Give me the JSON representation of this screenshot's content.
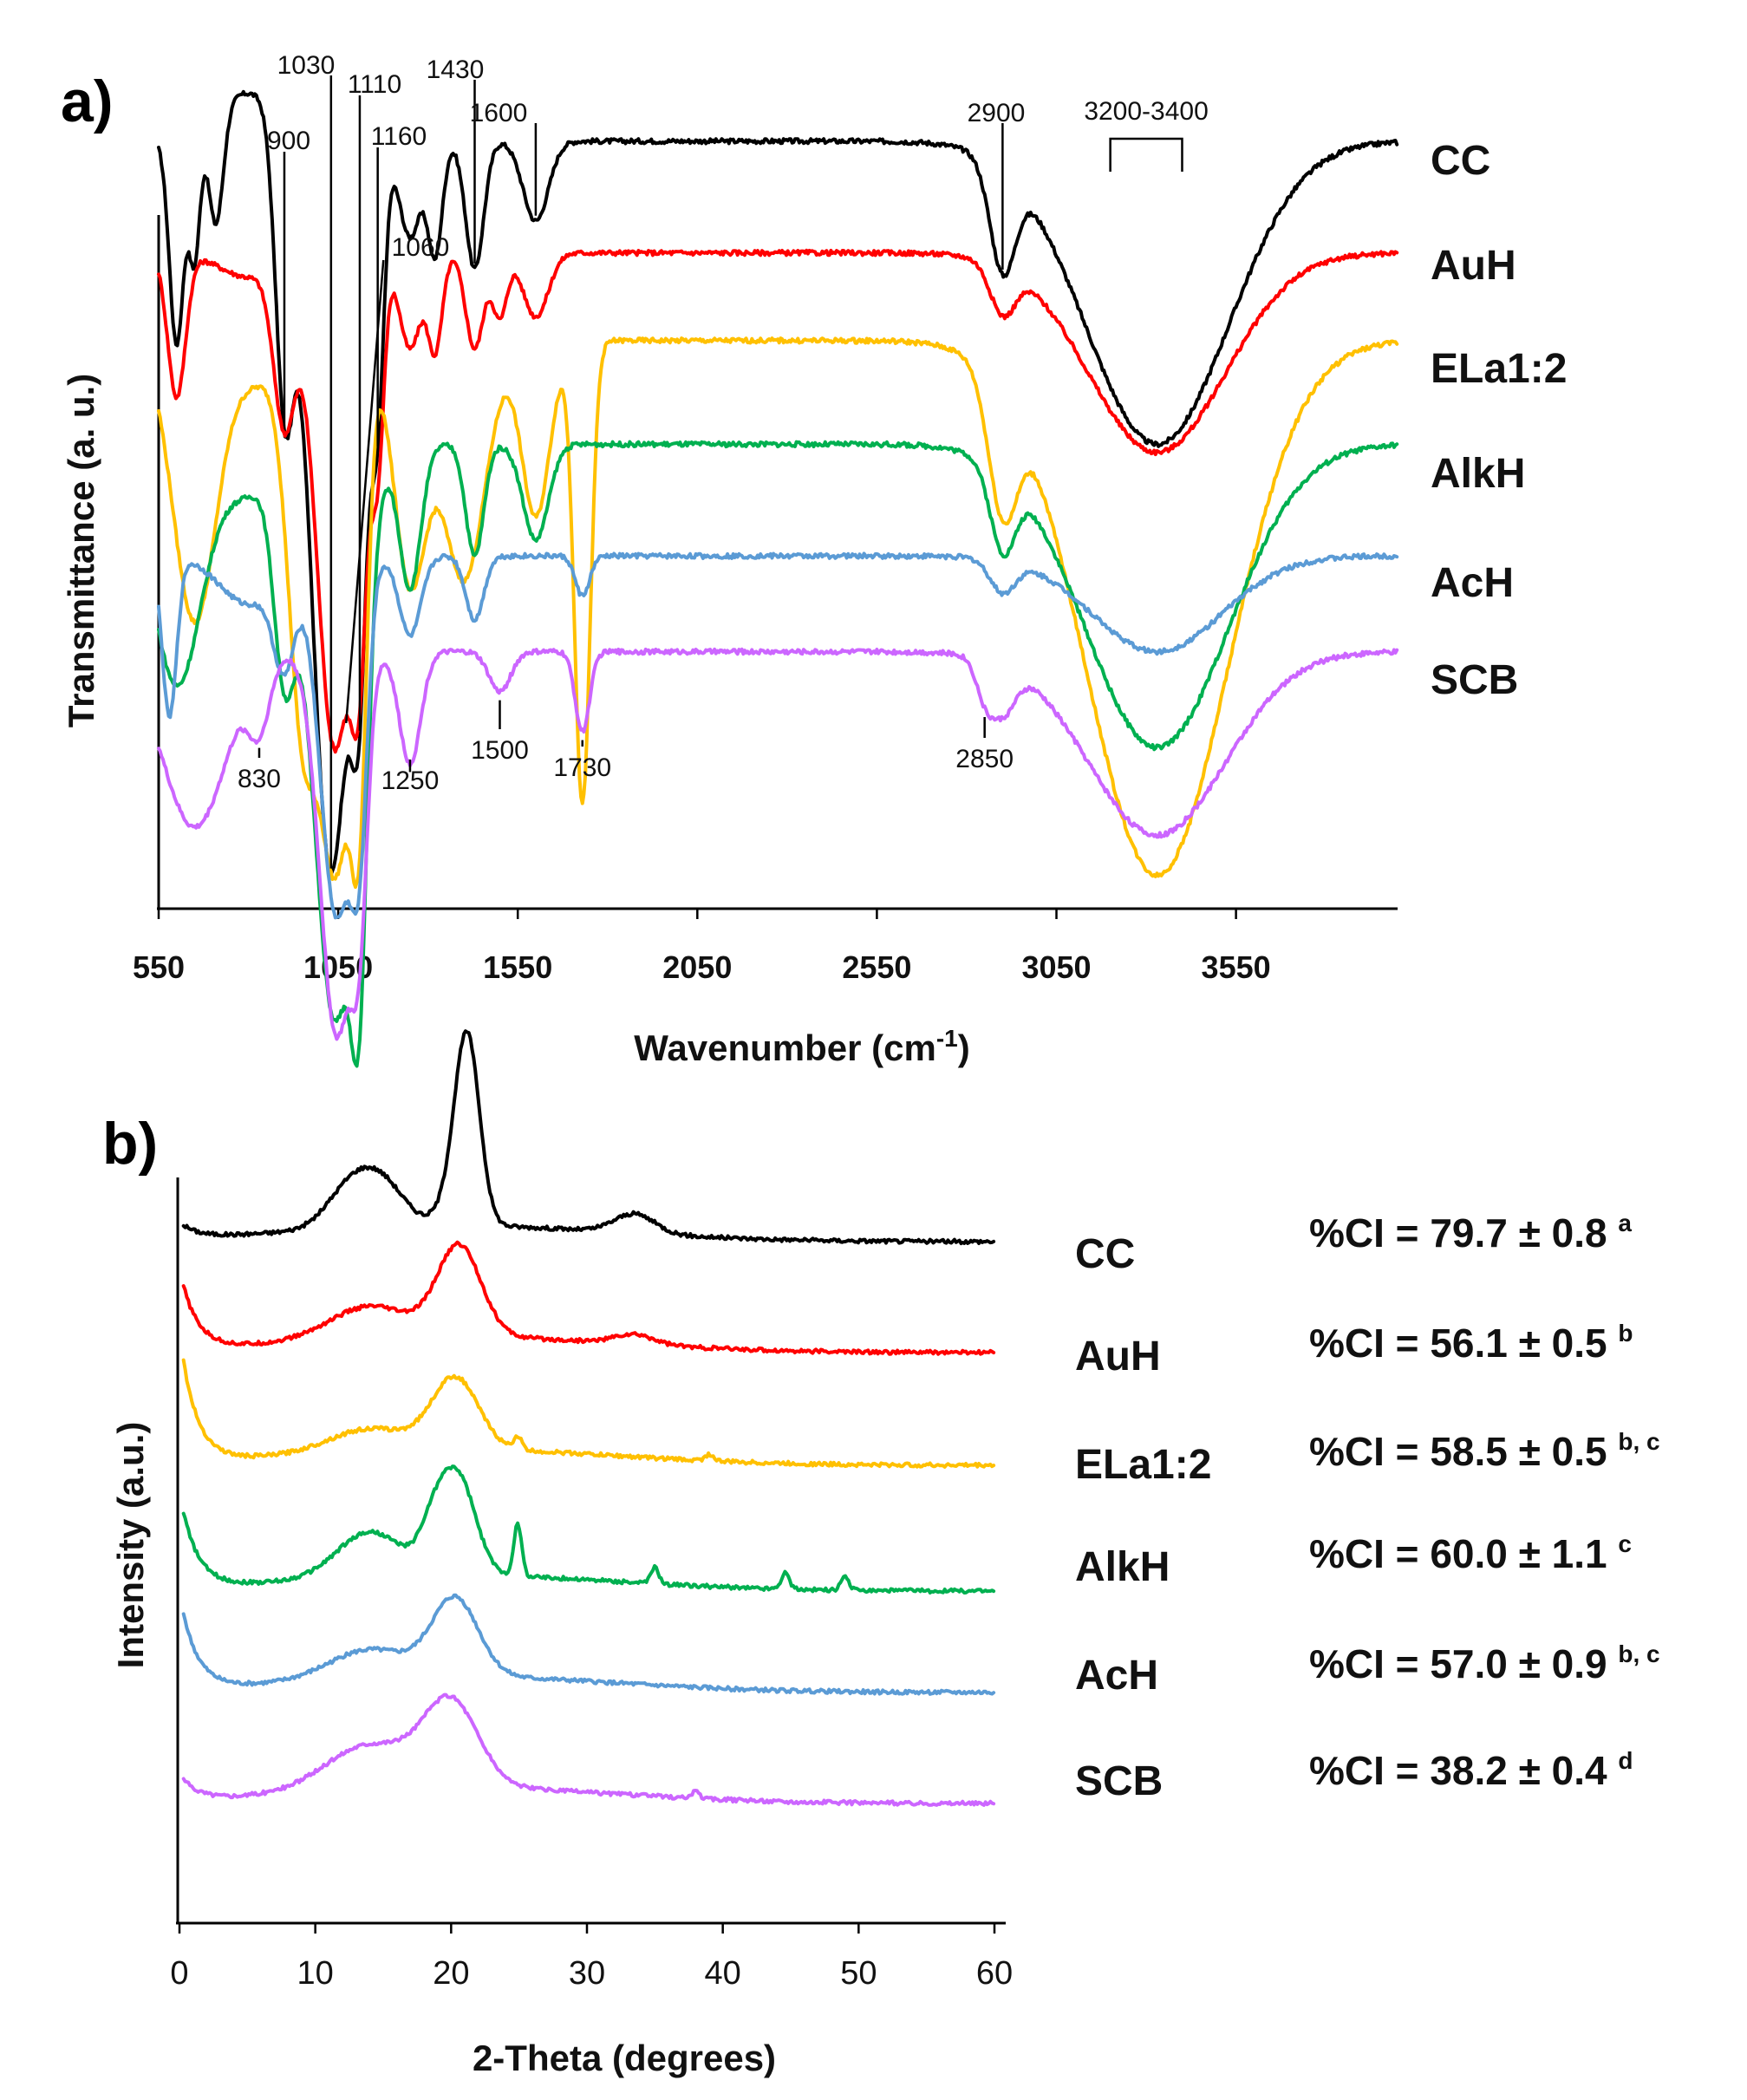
{
  "chart_data": [
    {
      "panel": "a)",
      "type": "line",
      "xlabel": "Wavenumber (cm",
      "xlabel_sup": "-1",
      "xlabel_close": ")",
      "ylabel": "Transmittance (a. u.)",
      "xlim": [
        550,
        4000
      ],
      "xticks": [
        "550",
        "1050",
        "1550",
        "2050",
        "2550",
        "3050",
        "3550"
      ],
      "xtick_values": [
        550,
        1050,
        1550,
        2050,
        2550,
        3050,
        3550
      ],
      "grid": false,
      "series": [
        {
          "name": "CC",
          "color": "#000000",
          "baseline": 0.91,
          "bands": [
            [
              600,
              0.26,
              20
            ],
            [
              650,
              0.16,
              15
            ],
            [
              710,
              0.14,
              20
            ],
            [
              800,
              -0.06,
              90
            ],
            [
              900,
              0.34,
              25
            ],
            [
              1030,
              0.92,
              55
            ],
            [
              1110,
              0.42,
              22
            ],
            [
              1160,
              0.3,
              18
            ],
            [
              1250,
              0.12,
              30
            ],
            [
              1320,
              0.14,
              20
            ],
            [
              1430,
              0.16,
              25
            ],
            [
              1600,
              0.1,
              35
            ],
            [
              2900,
              0.13,
              35
            ],
            [
              3330,
              0.38,
              200
            ]
          ]
        },
        {
          "name": "AuH",
          "color": "#ff0000",
          "baseline": 0.77,
          "bands": [
            [
              600,
              0.18,
              25
            ],
            [
              800,
              0.03,
              80
            ],
            [
              900,
              0.2,
              30
            ],
            [
              1040,
              0.62,
              50
            ],
            [
              1110,
              0.34,
              22
            ],
            [
              1160,
              0.24,
              18
            ],
            [
              1250,
              0.12,
              30
            ],
            [
              1320,
              0.12,
              20
            ],
            [
              1430,
              0.12,
              25
            ],
            [
              1500,
              0.08,
              20
            ],
            [
              1600,
              0.08,
              35
            ],
            [
              2900,
              0.06,
              35
            ],
            [
              3330,
              0.25,
              190
            ]
          ]
        },
        {
          "name": "ELa1:2",
          "color": "#ffc000",
          "baseline": 0.66,
          "bands": [
            [
              650,
              0.35,
              60
            ],
            [
              820,
              0.05,
              70
            ],
            [
              950,
              0.45,
              40
            ],
            [
              1045,
              0.64,
              45
            ],
            [
              1110,
              0.42,
              22
            ],
            [
              1250,
              0.3,
              45
            ],
            [
              1400,
              0.3,
              60
            ],
            [
              1600,
              0.22,
              40
            ],
            [
              1730,
              0.58,
              22
            ],
            [
              2900,
              0.16,
              40
            ],
            [
              3330,
              0.67,
              200
            ]
          ]
        },
        {
          "name": "AlkH",
          "color": "#00b050",
          "baseline": 0.53,
          "bands": [
            [
              600,
              0.3,
              70
            ],
            [
              800,
              0.06,
              80
            ],
            [
              900,
              0.24,
              30
            ],
            [
              1040,
              0.72,
              60
            ],
            [
              1110,
              0.38,
              22
            ],
            [
              1250,
              0.18,
              30
            ],
            [
              1430,
              0.14,
              25
            ],
            [
              1600,
              0.12,
              35
            ],
            [
              2900,
              0.1,
              35
            ],
            [
              3330,
              0.38,
              200
            ]
          ]
        },
        {
          "name": "AcH",
          "color": "#5b9bd5",
          "baseline": 0.39,
          "bands": [
            [
              580,
              0.2,
              20
            ],
            [
              800,
              0.06,
              80
            ],
            [
              900,
              0.12,
              30
            ],
            [
              1045,
              0.45,
              45
            ],
            [
              1110,
              0.26,
              22
            ],
            [
              1250,
              0.1,
              30
            ],
            [
              1430,
              0.08,
              25
            ],
            [
              1730,
              0.05,
              20
            ],
            [
              2900,
              0.04,
              35
            ],
            [
              3330,
              0.12,
              180
            ]
          ]
        },
        {
          "name": "SCB",
          "color": "#cc66ff",
          "baseline": 0.27,
          "bands": [
            [
              650,
              0.22,
              90
            ],
            [
              830,
              0.08,
              30
            ],
            [
              1045,
              0.48,
              45
            ],
            [
              1110,
              0.24,
              22
            ],
            [
              1250,
              0.14,
              30
            ],
            [
              1500,
              0.05,
              30
            ],
            [
              1730,
              0.1,
              20
            ],
            [
              2850,
              0.04,
              25
            ],
            [
              2900,
              0.06,
              35
            ],
            [
              3330,
              0.23,
              190
            ]
          ]
        }
      ],
      "annotations": [
        {
          "text": "1030",
          "x": 1030
        },
        {
          "text": "900",
          "x": 900
        },
        {
          "text": "1110",
          "x": 1110
        },
        {
          "text": "1160",
          "x": 1160
        },
        {
          "text": "1430",
          "x": 1430
        },
        {
          "text": "1600",
          "x": 1600
        },
        {
          "text": "1060",
          "x": 1060
        },
        {
          "text": "2900",
          "x": 2900
        },
        {
          "text": "3200-3400",
          "x": [
            3200,
            3400
          ]
        },
        {
          "text": "830",
          "x": 830
        },
        {
          "text": "1250",
          "x": 1250
        },
        {
          "text": "1500",
          "x": 1500
        },
        {
          "text": "1730",
          "x": 1730
        },
        {
          "text": "2850",
          "x": 2850
        }
      ]
    },
    {
      "panel": "b)",
      "type": "line",
      "xlabel": "2-Theta (degrees)",
      "ylabel": "Intensity (a.u.)",
      "xlim": [
        0,
        60
      ],
      "xticks": [
        "0",
        "10",
        "20",
        "30",
        "40",
        "50",
        "60"
      ],
      "xtick_values": [
        0,
        10,
        20,
        30,
        40,
        50,
        60
      ],
      "grid": false,
      "series": [
        {
          "name": "CC",
          "color": "#000000",
          "ci": "%CI = 79.7 ± 0.8",
          "sup": "a",
          "peaks": [
            [
              12.8,
              0.14,
              1.8
            ],
            [
              15.2,
              0.1,
              1.6
            ],
            [
              20.5,
              0.1,
              1.2
            ],
            [
              21.2,
              0.52,
              0.9
            ],
            [
              33.5,
              0.06,
              1.5
            ]
          ],
          "start": 0.05
        },
        {
          "name": "AuH",
          "color": "#ff0000",
          "ci": "%CI = 56.1 ± 0.5",
          "sup": "b",
          "peaks": [
            [
              14.0,
              0.1,
              3.0
            ],
            [
              20.6,
              0.28,
              1.6
            ],
            [
              33.5,
              0.03,
              1.5
            ]
          ],
          "start": 0.25
        },
        {
          "name": "ELa1:2",
          "color": "#ffc000",
          "ci": "%CI = 58.5 ± 0.5",
          "sup": "b, c",
          "peaks": [
            [
              14.0,
              0.07,
              3.0
            ],
            [
              20.3,
              0.22,
              1.7
            ],
            [
              24.9,
              0.04,
              0.3
            ],
            [
              39.0,
              0.02,
              0.3
            ]
          ],
          "start": 0.4
        },
        {
          "name": "AlkH",
          "color": "#00b050",
          "ci": "%CI = 60.0 ± 1.1",
          "sup": "c",
          "peaks": [
            [
              14.0,
              0.14,
              2.4
            ],
            [
              18.7,
              0.12,
              1.0
            ],
            [
              20.5,
              0.3,
              1.3
            ],
            [
              24.9,
              0.16,
              0.3
            ],
            [
              35.0,
              0.05,
              0.3
            ],
            [
              44.6,
              0.05,
              0.3
            ],
            [
              49.0,
              0.04,
              0.3
            ]
          ],
          "start": 0.3
        },
        {
          "name": "AcH",
          "color": "#5b9bd5",
          "ci": "%CI = 57.0 ± 0.9",
          "sup": "b, c",
          "peaks": [
            [
              14.0,
              0.09,
              3.0
            ],
            [
              20.3,
              0.24,
              1.7
            ]
          ],
          "start": 0.3
        },
        {
          "name": "SCB",
          "color": "#cc66ff",
          "ci": "%CI = 38.2 ± 0.4",
          "sup": "d",
          "peaks": [
            [
              14.0,
              0.14,
              3.2
            ],
            [
              20.0,
              0.26,
              2.0
            ],
            [
              38.0,
              0.02,
              0.3
            ]
          ],
          "start": 0.08
        }
      ]
    }
  ]
}
